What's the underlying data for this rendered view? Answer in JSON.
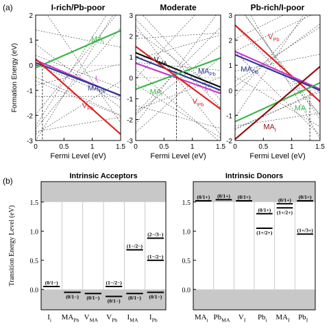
{
  "panel_labels": {
    "a": "(a)",
    "b": "(b)"
  },
  "chart_data": [
    {
      "type": "line",
      "title": "I-rich/Pb-poor",
      "xlabel": "Fermi Level (eV)",
      "ylabel": "Formation Energy (eV)",
      "xlim": [
        0,
        1.5
      ],
      "ylim": [
        -3,
        2
      ],
      "xticks": [
        "0",
        "0.5",
        "1",
        "1.5"
      ],
      "yticks": [
        "-3",
        "-2",
        "-1",
        "0",
        "1",
        "2"
      ],
      "vline_x": 0.12,
      "series": [
        {
          "name": "MA_i",
          "color": "#3ab54a",
          "points": [
            [
              0,
              -0.1
            ],
            [
              1.5,
              1.38
            ]
          ]
        },
        {
          "name": "I_i",
          "color": "#c838c8",
          "points": [
            [
              0,
              0.2
            ],
            [
              1.5,
              -1.22
            ]
          ]
        },
        {
          "name": "MA_Pb",
          "color": "#2c3a96",
          "points": [
            [
              0,
              0.1
            ],
            [
              1.5,
              -1.2
            ]
          ]
        },
        {
          "name": "V_Pb",
          "color": "#e02020",
          "points": [
            [
              0,
              0.25
            ],
            [
              1.5,
              -2.75
            ]
          ]
        }
      ],
      "annotations": [
        {
          "series": "MA_i",
          "base": "MA",
          "sub": "i",
          "x": 0.98,
          "y": 0.95
        },
        {
          "series": "I_i",
          "base": "I",
          "sub": "i",
          "x": 1.05,
          "y": -0.62
        },
        {
          "series": "MA_Pb",
          "base": "MA",
          "sub": "Pb",
          "x": 0.92,
          "y": -1.0
        },
        {
          "series": "V_Pb",
          "base": "V",
          "sub": "Pb",
          "x": 0.82,
          "y": -1.7
        }
      ]
    },
    {
      "type": "line",
      "title": "Moderate",
      "xlabel": "Fermi Level (eV)",
      "ylabel": "",
      "xlim": [
        0,
        1.5
      ],
      "ylim": [
        -3,
        3
      ],
      "xticks": [
        "0",
        "0.5",
        "1",
        "1.5"
      ],
      "yticks": [
        "-3",
        "-2",
        "-1",
        "0",
        "1",
        "2",
        "3"
      ],
      "vline_x": 0.72,
      "series": [
        {
          "name": "V_MA",
          "color": "#111111",
          "points": [
            [
              0,
              1.2
            ],
            [
              1.5,
              -0.45
            ]
          ]
        },
        {
          "name": "MA_Pb",
          "color": "#2c3a96",
          "points": [
            [
              0,
              1.0
            ],
            [
              1.5,
              -0.6
            ]
          ]
        },
        {
          "name": "I_i",
          "color": "#c838c8",
          "points": [
            [
              0,
              0.7
            ],
            [
              1.5,
              -0.75
            ]
          ]
        },
        {
          "name": "MA_i",
          "color": "#3ab54a",
          "points": [
            [
              0,
              -0.55
            ],
            [
              1.5,
              0.95
            ]
          ]
        },
        {
          "name": "V_Pb",
          "color": "#e02020",
          "points": [
            [
              0,
              1.5
            ],
            [
              1.5,
              -1.5
            ]
          ]
        }
      ],
      "annotations": [
        {
          "series": "V_MA",
          "base": "V",
          "sub": "MA",
          "x": 0.32,
          "y": 0.75
        },
        {
          "series": "MA_Pb",
          "base": "MA",
          "sub": "Pb",
          "x": 1.1,
          "y": 0.2
        },
        {
          "series": "I_i",
          "base": "I",
          "sub": "i",
          "x": 1.22,
          "y": -0.62
        },
        {
          "series": "MA_i",
          "base": "MA",
          "sub": "i",
          "x": 0.25,
          "y": -0.78
        },
        {
          "series": "V_Pb",
          "base": "V",
          "sub": "Pb",
          "x": 1.0,
          "y": -1.25
        }
      ]
    },
    {
      "type": "line",
      "title": "Pb-rich/I-poor",
      "xlabel": "Fermi Level (eV)",
      "ylabel": "",
      "xlim": [
        0,
        1.5
      ],
      "ylim": [
        -2,
        3
      ],
      "xticks": [
        "0",
        "0.5",
        "1",
        "1.5"
      ],
      "yticks": [
        "-2",
        "-1",
        "0",
        "1",
        "2",
        "3"
      ],
      "vline_x": 1.32,
      "series": [
        {
          "name": "V_Pb",
          "color": "#e02020",
          "points": [
            [
              0,
              2.6
            ],
            [
              1.5,
              -0.45
            ]
          ]
        },
        {
          "name": "I_i",
          "color": "#c838c8",
          "points": [
            [
              0,
              1.55
            ],
            [
              1.5,
              0.05
            ]
          ]
        },
        {
          "name": "MA_Pb",
          "color": "#2c3a96",
          "points": [
            [
              0,
              1.42
            ],
            [
              1.5,
              0.0
            ]
          ]
        },
        {
          "name": "MA_i",
          "color": "#3ab54a",
          "points": [
            [
              0,
              -1.25
            ],
            [
              1.5,
              0.3
            ]
          ]
        },
        {
          "name": "MA_I",
          "color": "#8b1010",
          "points": [
            [
              0,
              -1.95
            ],
            [
              1.5,
              0.95
            ]
          ]
        }
      ],
      "annotations": [
        {
          "series": "V_Pb",
          "base": "V",
          "sub": "Pb",
          "x": 0.58,
          "y": 2.05
        },
        {
          "series": "I_i",
          "base": "I",
          "sub": "i",
          "x": 0.1,
          "y": 1.25
        },
        {
          "series": "MA_Pb",
          "base": "MA",
          "sub": "Pb",
          "x": 0.1,
          "y": 0.75
        },
        {
          "series": "MA_i",
          "base": "MA",
          "sub": "i",
          "x": 1.05,
          "y": -0.8
        },
        {
          "series": "MA_I",
          "base": "MA",
          "sub": "I",
          "x": 0.5,
          "y": -1.55
        }
      ]
    },
    {
      "type": "bar",
      "title": "Intrinsic Acceptors",
      "ylabel": "Transition Energy Level (eV)",
      "ylim": [
        -0.35,
        1.85
      ],
      "yticks": [
        "0.0",
        "0.5",
        "1.0",
        "1.5"
      ],
      "band": {
        "vbm": 0.0,
        "cbm": 1.5
      },
      "categories": [
        {
          "base": "I",
          "sub": "i"
        },
        {
          "base": "MA",
          "sub": "Pb"
        },
        {
          "base": "V",
          "sub": "MA"
        },
        {
          "base": "V",
          "sub": "Pb"
        },
        {
          "base": "I",
          "sub": "MA"
        },
        {
          "base": "I",
          "sub": "Pb"
        }
      ],
      "levels": [
        {
          "col": 0,
          "value": 0.05,
          "label": "(0/1−)",
          "pos": "above"
        },
        {
          "col": 1,
          "value": -0.05,
          "label": "(0/1−)",
          "pos": "below"
        },
        {
          "col": 2,
          "value": -0.07,
          "label": "(0/1−)",
          "pos": "below"
        },
        {
          "col": 3,
          "value": 0.05,
          "label": "(1−/2−)",
          "pos": "above"
        },
        {
          "col": 3,
          "value": -0.12,
          "label": "(0/1−)",
          "pos": "below"
        },
        {
          "col": 4,
          "value": 0.68,
          "label": "(1−/2−)",
          "pos": "above"
        },
        {
          "col": 4,
          "value": -0.07,
          "label": "(0/1−)",
          "pos": "below"
        },
        {
          "col": 5,
          "value": 0.88,
          "label": "(2−/3−)",
          "pos": "above"
        },
        {
          "col": 5,
          "value": 0.5,
          "label": "(1−/2−)",
          "pos": "above"
        },
        {
          "col": 5,
          "value": -0.05,
          "label": "(0/1−)",
          "pos": "below"
        }
      ]
    },
    {
      "type": "bar",
      "title": "Intrinsic Donors",
      "ylabel": "",
      "ylim": [
        -0.35,
        1.85
      ],
      "yticks": [
        "0.0",
        "0.5",
        "1.0",
        "1.5"
      ],
      "band": {
        "vbm": 0.0,
        "cbm": 1.5
      },
      "categories": [
        {
          "base": "MA",
          "sub": "i"
        },
        {
          "base": "Pb",
          "sub": "MA"
        },
        {
          "base": "V",
          "sub": "I"
        },
        {
          "base": "Pb",
          "sub": "i"
        },
        {
          "base": "MA",
          "sub": "I"
        },
        {
          "base": "Pb",
          "sub": "I"
        }
      ],
      "levels": [
        {
          "col": 0,
          "value": 1.52,
          "label": "(0/1+)",
          "pos": "above"
        },
        {
          "col": 1,
          "value": 1.54,
          "label": "(0/1+)",
          "pos": "above"
        },
        {
          "col": 2,
          "value": 1.52,
          "label": "(0/1+)",
          "pos": "above"
        },
        {
          "col": 3,
          "value": 1.3,
          "label": "(0/1+)",
          "pos": "above"
        },
        {
          "col": 3,
          "value": 1.05,
          "label": "(1+/2+)",
          "pos": "below"
        },
        {
          "col": 4,
          "value": 1.47,
          "label": "(0/1+)",
          "pos": "above"
        },
        {
          "col": 4,
          "value": 1.4,
          "label": "(1+/2+)",
          "pos": "below"
        },
        {
          "col": 5,
          "value": 1.52,
          "label": "(0/1+)",
          "pos": "above"
        },
        {
          "col": 5,
          "value": 0.95,
          "label": "(1+/3+)",
          "pos": "above"
        }
      ]
    }
  ]
}
